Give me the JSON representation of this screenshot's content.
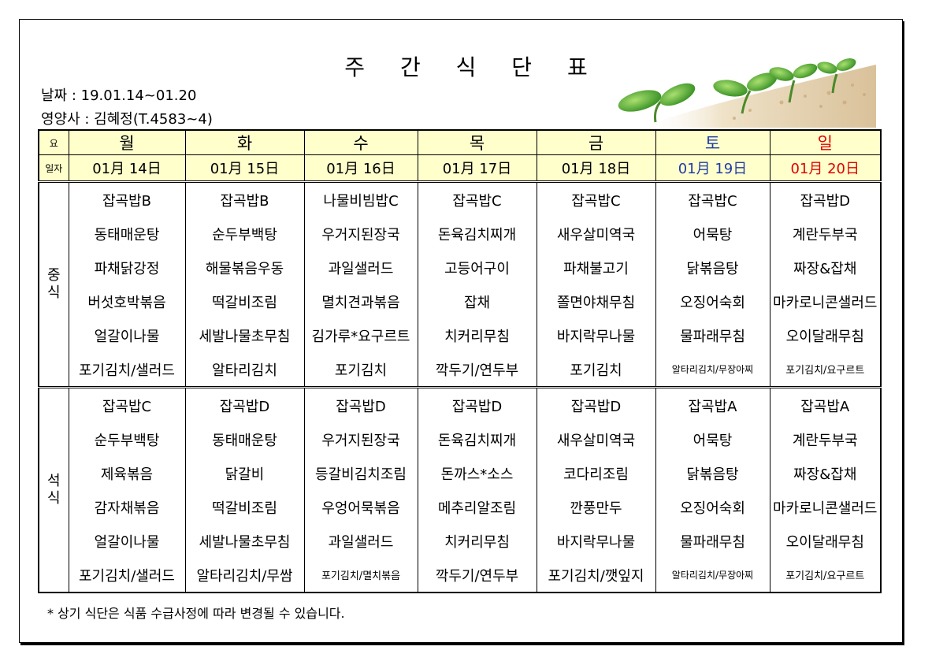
{
  "title": "주 간 식 단 표",
  "info": {
    "date": "날짜 : 19.01.14~01.20",
    "nutritionist": "영양사 : 김혜정(T.4583~4)"
  },
  "header": {
    "day_label": "요",
    "date_label": "일자",
    "days": [
      "월",
      "화",
      "수",
      "목",
      "금",
      "토",
      "일"
    ],
    "dates": [
      "01月 14日",
      "01月 15日",
      "01月 16日",
      "01月 17日",
      "01月 18日",
      "01月 19日",
      "01月 20日"
    ]
  },
  "colors": {
    "header_bg": "#ffffcc",
    "saturday": "#1f3aa8",
    "sunday": "#e00000"
  },
  "lunch": {
    "label": "중식",
    "rows": [
      [
        "잡곡밥B",
        "잡곡밥B",
        "나물비빔밥C",
        "잡곡밥C",
        "잡곡밥C",
        "잡곡밥C",
        "잡곡밥D"
      ],
      [
        "동태매운탕",
        "순두부백탕",
        "우거지된장국",
        "돈육김치찌개",
        "새우살미역국",
        "어묵탕",
        "계란두부국"
      ],
      [
        "파채닭강정",
        "해물볶음우동",
        "과일샐러드",
        "고등어구이",
        "파채불고기",
        "닭볶음탕",
        "짜장&잡채"
      ],
      [
        "버섯호박볶음",
        "떡갈비조림",
        "멸치견과볶음",
        "잡채",
        "쫄면야채무침",
        "오징어숙회",
        "마카로니콘샐러드"
      ],
      [
        "얼갈이나물",
        "세발나물초무침",
        "김가루*요구르트",
        "치커리무침",
        "바지락무나물",
        "물파래무침",
        "오이달래무침"
      ],
      [
        "포기김치/샐러드",
        "알타리김치",
        "포기김치",
        "깍두기/연두부",
        "포기김치",
        "알타리김치/무장아찌",
        "포기김치/요구르트"
      ]
    ]
  },
  "dinner": {
    "label": "석식",
    "rows": [
      [
        "잡곡밥C",
        "잡곡밥D",
        "잡곡밥D",
        "잡곡밥D",
        "잡곡밥D",
        "잡곡밥A",
        "잡곡밥A"
      ],
      [
        "순두부백탕",
        "동태매운탕",
        "우거지된장국",
        "돈육김치찌개",
        "새우살미역국",
        "어묵탕",
        "계란두부국"
      ],
      [
        "제육볶음",
        "닭갈비",
        "등갈비김치조림",
        "돈까스*소스",
        "코다리조림",
        "닭볶음탕",
        "짜장&잡채"
      ],
      [
        "감자채볶음",
        "떡갈비조림",
        "우엉어묵볶음",
        "메추리알조림",
        "깐풍만두",
        "오징어숙회",
        "마카로니콘샐러드"
      ],
      [
        "얼갈이나물",
        "세발나물초무침",
        "과일샐러드",
        "치커리무침",
        "바지락무나물",
        "물파래무침",
        "오이달래무침"
      ],
      [
        "포기김치/샐러드",
        "알타리김치/무쌈",
        "포기김치/멸치볶음",
        "깍두기/연두부",
        "포기김치/깻잎지",
        "알타리김치/무장아찌",
        "포기김치/요구르트"
      ]
    ]
  },
  "note": "* 상기 식단은 식품 수급사정에 따라 변경될 수 있습니다.",
  "decor": {
    "image": "sprout-illustration"
  }
}
